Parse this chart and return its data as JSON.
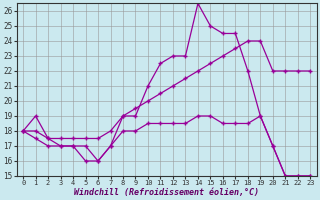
{
  "xlabel": "Windchill (Refroidissement éolien,°C)",
  "background_color": "#cbe9ef",
  "grid_color": "#999999",
  "line_color": "#990099",
  "xlim": [
    -0.5,
    23.5
  ],
  "ylim": [
    15,
    26.5
  ],
  "yticks": [
    15,
    16,
    17,
    18,
    19,
    20,
    21,
    22,
    23,
    24,
    25,
    26
  ],
  "xticks": [
    0,
    1,
    2,
    3,
    4,
    5,
    6,
    7,
    8,
    9,
    10,
    11,
    12,
    13,
    14,
    15,
    16,
    17,
    18,
    19,
    20,
    21,
    22,
    23
  ],
  "series": [
    {
      "x": [
        0,
        1,
        2,
        3,
        4,
        5,
        6,
        7,
        8,
        9,
        10,
        11,
        12,
        13,
        14,
        15,
        16,
        17,
        18,
        19,
        20,
        21,
        22,
        23
      ],
      "y": [
        18,
        19,
        17.5,
        17,
        17,
        16,
        16,
        17,
        19,
        19,
        21,
        22.5,
        23,
        23,
        26.5,
        25,
        24.5,
        24.5,
        22,
        19,
        17,
        15,
        15,
        15
      ]
    },
    {
      "x": [
        0,
        1,
        2,
        3,
        4,
        5,
        6,
        7,
        8,
        9,
        10,
        11,
        12,
        13,
        14,
        15,
        16,
        17,
        18,
        19,
        20,
        21,
        22,
        23
      ],
      "y": [
        18,
        18,
        17.5,
        17.5,
        17.5,
        17.5,
        17.5,
        18,
        19,
        19.5,
        20,
        20.5,
        21,
        21.5,
        22,
        22.5,
        23,
        23.5,
        24,
        24,
        22,
        22,
        22,
        22
      ]
    },
    {
      "x": [
        0,
        1,
        2,
        3,
        4,
        5,
        6,
        7,
        8,
        9,
        10,
        11,
        12,
        13,
        14,
        15,
        16,
        17,
        18,
        19,
        20,
        21,
        22,
        23
      ],
      "y": [
        18,
        17.5,
        17,
        17,
        17,
        17,
        16,
        17,
        18,
        18,
        18.5,
        18.5,
        18.5,
        18.5,
        19,
        19,
        18.5,
        18.5,
        18.5,
        19,
        17,
        15,
        15,
        15
      ]
    }
  ]
}
